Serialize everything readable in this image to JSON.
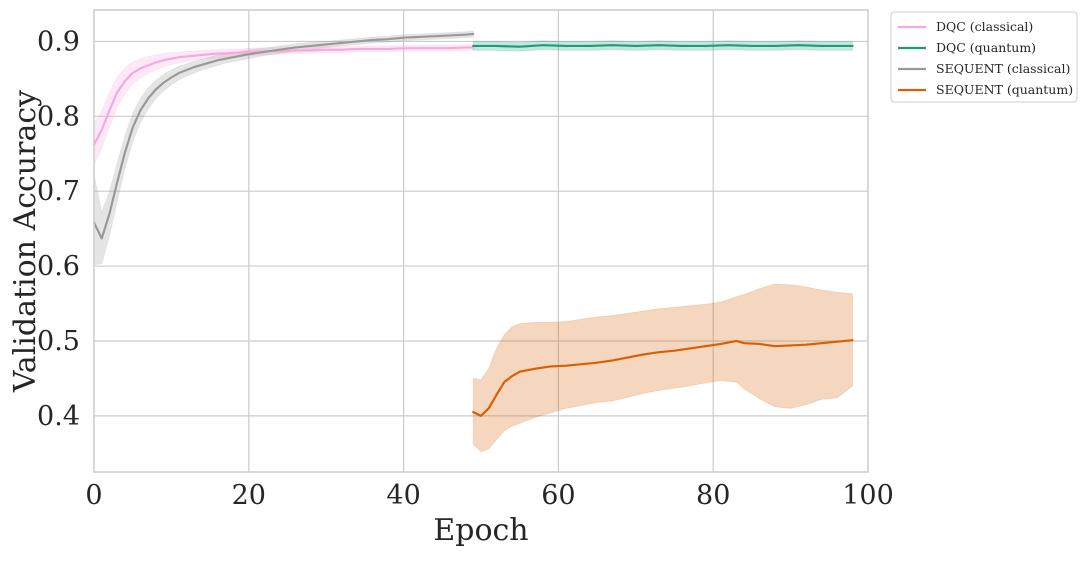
{
  "chart_data": {
    "type": "line",
    "title": "",
    "xlabel": "Epoch",
    "ylabel": "Validation Accuracy",
    "xlim": [
      0,
      100
    ],
    "ylim": [
      0.325,
      0.942
    ],
    "xticks": [
      "0",
      "20",
      "40",
      "60",
      "80",
      "100"
    ],
    "yticks": [
      "0.4",
      "0.5",
      "0.6",
      "0.7",
      "0.8",
      "0.9"
    ],
    "grid": true,
    "legend_position": "outside-top-right",
    "series": [
      {
        "name": "DQC (classical)",
        "color": "#f7a8dc",
        "x": [
          0,
          1,
          2,
          3,
          4,
          5,
          6,
          7,
          8,
          9,
          10,
          11,
          12,
          13,
          14,
          15,
          16,
          17,
          18,
          19,
          20,
          22,
          24,
          26,
          28,
          30,
          32,
          34,
          36,
          38,
          40,
          42,
          44,
          46,
          48,
          49
        ],
        "y": [
          0.762,
          0.782,
          0.808,
          0.832,
          0.847,
          0.858,
          0.864,
          0.868,
          0.872,
          0.875,
          0.877,
          0.879,
          0.88,
          0.881,
          0.882,
          0.883,
          0.884,
          0.884,
          0.885,
          0.885,
          0.886,
          0.887,
          0.887,
          0.888,
          0.888,
          0.889,
          0.889,
          0.89,
          0.89,
          0.89,
          0.891,
          0.891,
          0.891,
          0.891,
          0.892,
          0.892
        ],
        "lower": [
          0.735,
          0.757,
          0.785,
          0.812,
          0.83,
          0.843,
          0.851,
          0.857,
          0.862,
          0.866,
          0.869,
          0.871,
          0.873,
          0.875,
          0.876,
          0.877,
          0.878,
          0.879,
          0.88,
          0.88,
          0.881,
          0.882,
          0.883,
          0.884,
          0.884,
          0.885,
          0.885,
          0.886,
          0.886,
          0.886,
          0.887,
          0.887,
          0.887,
          0.887,
          0.888,
          0.888
        ],
        "upper": [
          0.79,
          0.808,
          0.832,
          0.853,
          0.865,
          0.873,
          0.877,
          0.88,
          0.882,
          0.884,
          0.885,
          0.886,
          0.887,
          0.887,
          0.888,
          0.889,
          0.889,
          0.89,
          0.89,
          0.89,
          0.891,
          0.892,
          0.892,
          0.892,
          0.893,
          0.893,
          0.893,
          0.894,
          0.894,
          0.894,
          0.895,
          0.895,
          0.895,
          0.895,
          0.896,
          0.896
        ]
      },
      {
        "name": "DQC (quantum)",
        "color": "#1b9e77",
        "x": [
          49,
          52,
          55,
          58,
          61,
          64,
          67,
          70,
          73,
          76,
          79,
          82,
          85,
          88,
          91,
          94,
          97,
          98
        ],
        "y": [
          0.894,
          0.894,
          0.893,
          0.895,
          0.894,
          0.894,
          0.895,
          0.894,
          0.895,
          0.894,
          0.894,
          0.895,
          0.894,
          0.894,
          0.895,
          0.894,
          0.894,
          0.894
        ],
        "lower": [
          0.888,
          0.888,
          0.887,
          0.889,
          0.888,
          0.888,
          0.889,
          0.888,
          0.889,
          0.888,
          0.888,
          0.889,
          0.888,
          0.888,
          0.889,
          0.888,
          0.888,
          0.888
        ],
        "upper": [
          0.9,
          0.9,
          0.899,
          0.901,
          0.9,
          0.9,
          0.901,
          0.9,
          0.901,
          0.9,
          0.9,
          0.901,
          0.9,
          0.9,
          0.901,
          0.9,
          0.9,
          0.9
        ]
      },
      {
        "name": "SEQUENT (classical)",
        "color": "#999999",
        "x": [
          0,
          1,
          2,
          3,
          4,
          5,
          6,
          7,
          8,
          9,
          10,
          11,
          12,
          13,
          14,
          15,
          16,
          17,
          18,
          19,
          20,
          22,
          24,
          26,
          28,
          30,
          32,
          34,
          36,
          38,
          40,
          42,
          44,
          46,
          48,
          49
        ],
        "y": [
          0.658,
          0.637,
          0.67,
          0.712,
          0.752,
          0.785,
          0.808,
          0.824,
          0.836,
          0.845,
          0.852,
          0.858,
          0.862,
          0.866,
          0.869,
          0.872,
          0.875,
          0.877,
          0.879,
          0.881,
          0.883,
          0.886,
          0.889,
          0.892,
          0.894,
          0.896,
          0.898,
          0.9,
          0.902,
          0.903,
          0.905,
          0.906,
          0.907,
          0.908,
          0.909,
          0.91
        ],
        "lower": [
          0.602,
          0.603,
          0.64,
          0.686,
          0.73,
          0.766,
          0.792,
          0.81,
          0.824,
          0.834,
          0.842,
          0.849,
          0.854,
          0.858,
          0.862,
          0.865,
          0.868,
          0.871,
          0.873,
          0.875,
          0.877,
          0.881,
          0.884,
          0.887,
          0.889,
          0.892,
          0.894,
          0.896,
          0.898,
          0.899,
          0.901,
          0.902,
          0.903,
          0.904,
          0.905,
          0.906
        ],
        "upper": [
          0.722,
          0.672,
          0.7,
          0.738,
          0.774,
          0.804,
          0.824,
          0.838,
          0.848,
          0.856,
          0.862,
          0.867,
          0.87,
          0.874,
          0.876,
          0.879,
          0.882,
          0.883,
          0.885,
          0.887,
          0.889,
          0.891,
          0.894,
          0.897,
          0.899,
          0.9,
          0.902,
          0.904,
          0.906,
          0.907,
          0.909,
          0.91,
          0.911,
          0.912,
          0.913,
          0.914
        ]
      },
      {
        "name": "SEQUENT (quantum)",
        "color": "#d95f02",
        "x": [
          49,
          50,
          51,
          52,
          53,
          54,
          55,
          57,
          59,
          61,
          63,
          65,
          67,
          69,
          71,
          73,
          75,
          77,
          79,
          81,
          83,
          84,
          86,
          88,
          90,
          92,
          94,
          96,
          98
        ],
        "y": [
          0.405,
          0.4,
          0.41,
          0.428,
          0.445,
          0.453,
          0.459,
          0.463,
          0.466,
          0.467,
          0.469,
          0.471,
          0.474,
          0.478,
          0.482,
          0.485,
          0.487,
          0.49,
          0.493,
          0.496,
          0.5,
          0.497,
          0.496,
          0.493,
          0.494,
          0.495,
          0.497,
          0.499,
          0.501
        ],
        "lower": [
          0.362,
          0.352,
          0.356,
          0.368,
          0.38,
          0.386,
          0.39,
          0.398,
          0.404,
          0.41,
          0.414,
          0.418,
          0.42,
          0.425,
          0.43,
          0.434,
          0.437,
          0.44,
          0.444,
          0.447,
          0.445,
          0.436,
          0.423,
          0.412,
          0.41,
          0.415,
          0.422,
          0.424,
          0.44
        ],
        "upper": [
          0.45,
          0.448,
          0.463,
          0.49,
          0.508,
          0.519,
          0.523,
          0.525,
          0.525,
          0.526,
          0.529,
          0.532,
          0.534,
          0.537,
          0.54,
          0.543,
          0.545,
          0.547,
          0.549,
          0.552,
          0.559,
          0.562,
          0.57,
          0.576,
          0.575,
          0.572,
          0.568,
          0.565,
          0.563
        ]
      }
    ]
  }
}
